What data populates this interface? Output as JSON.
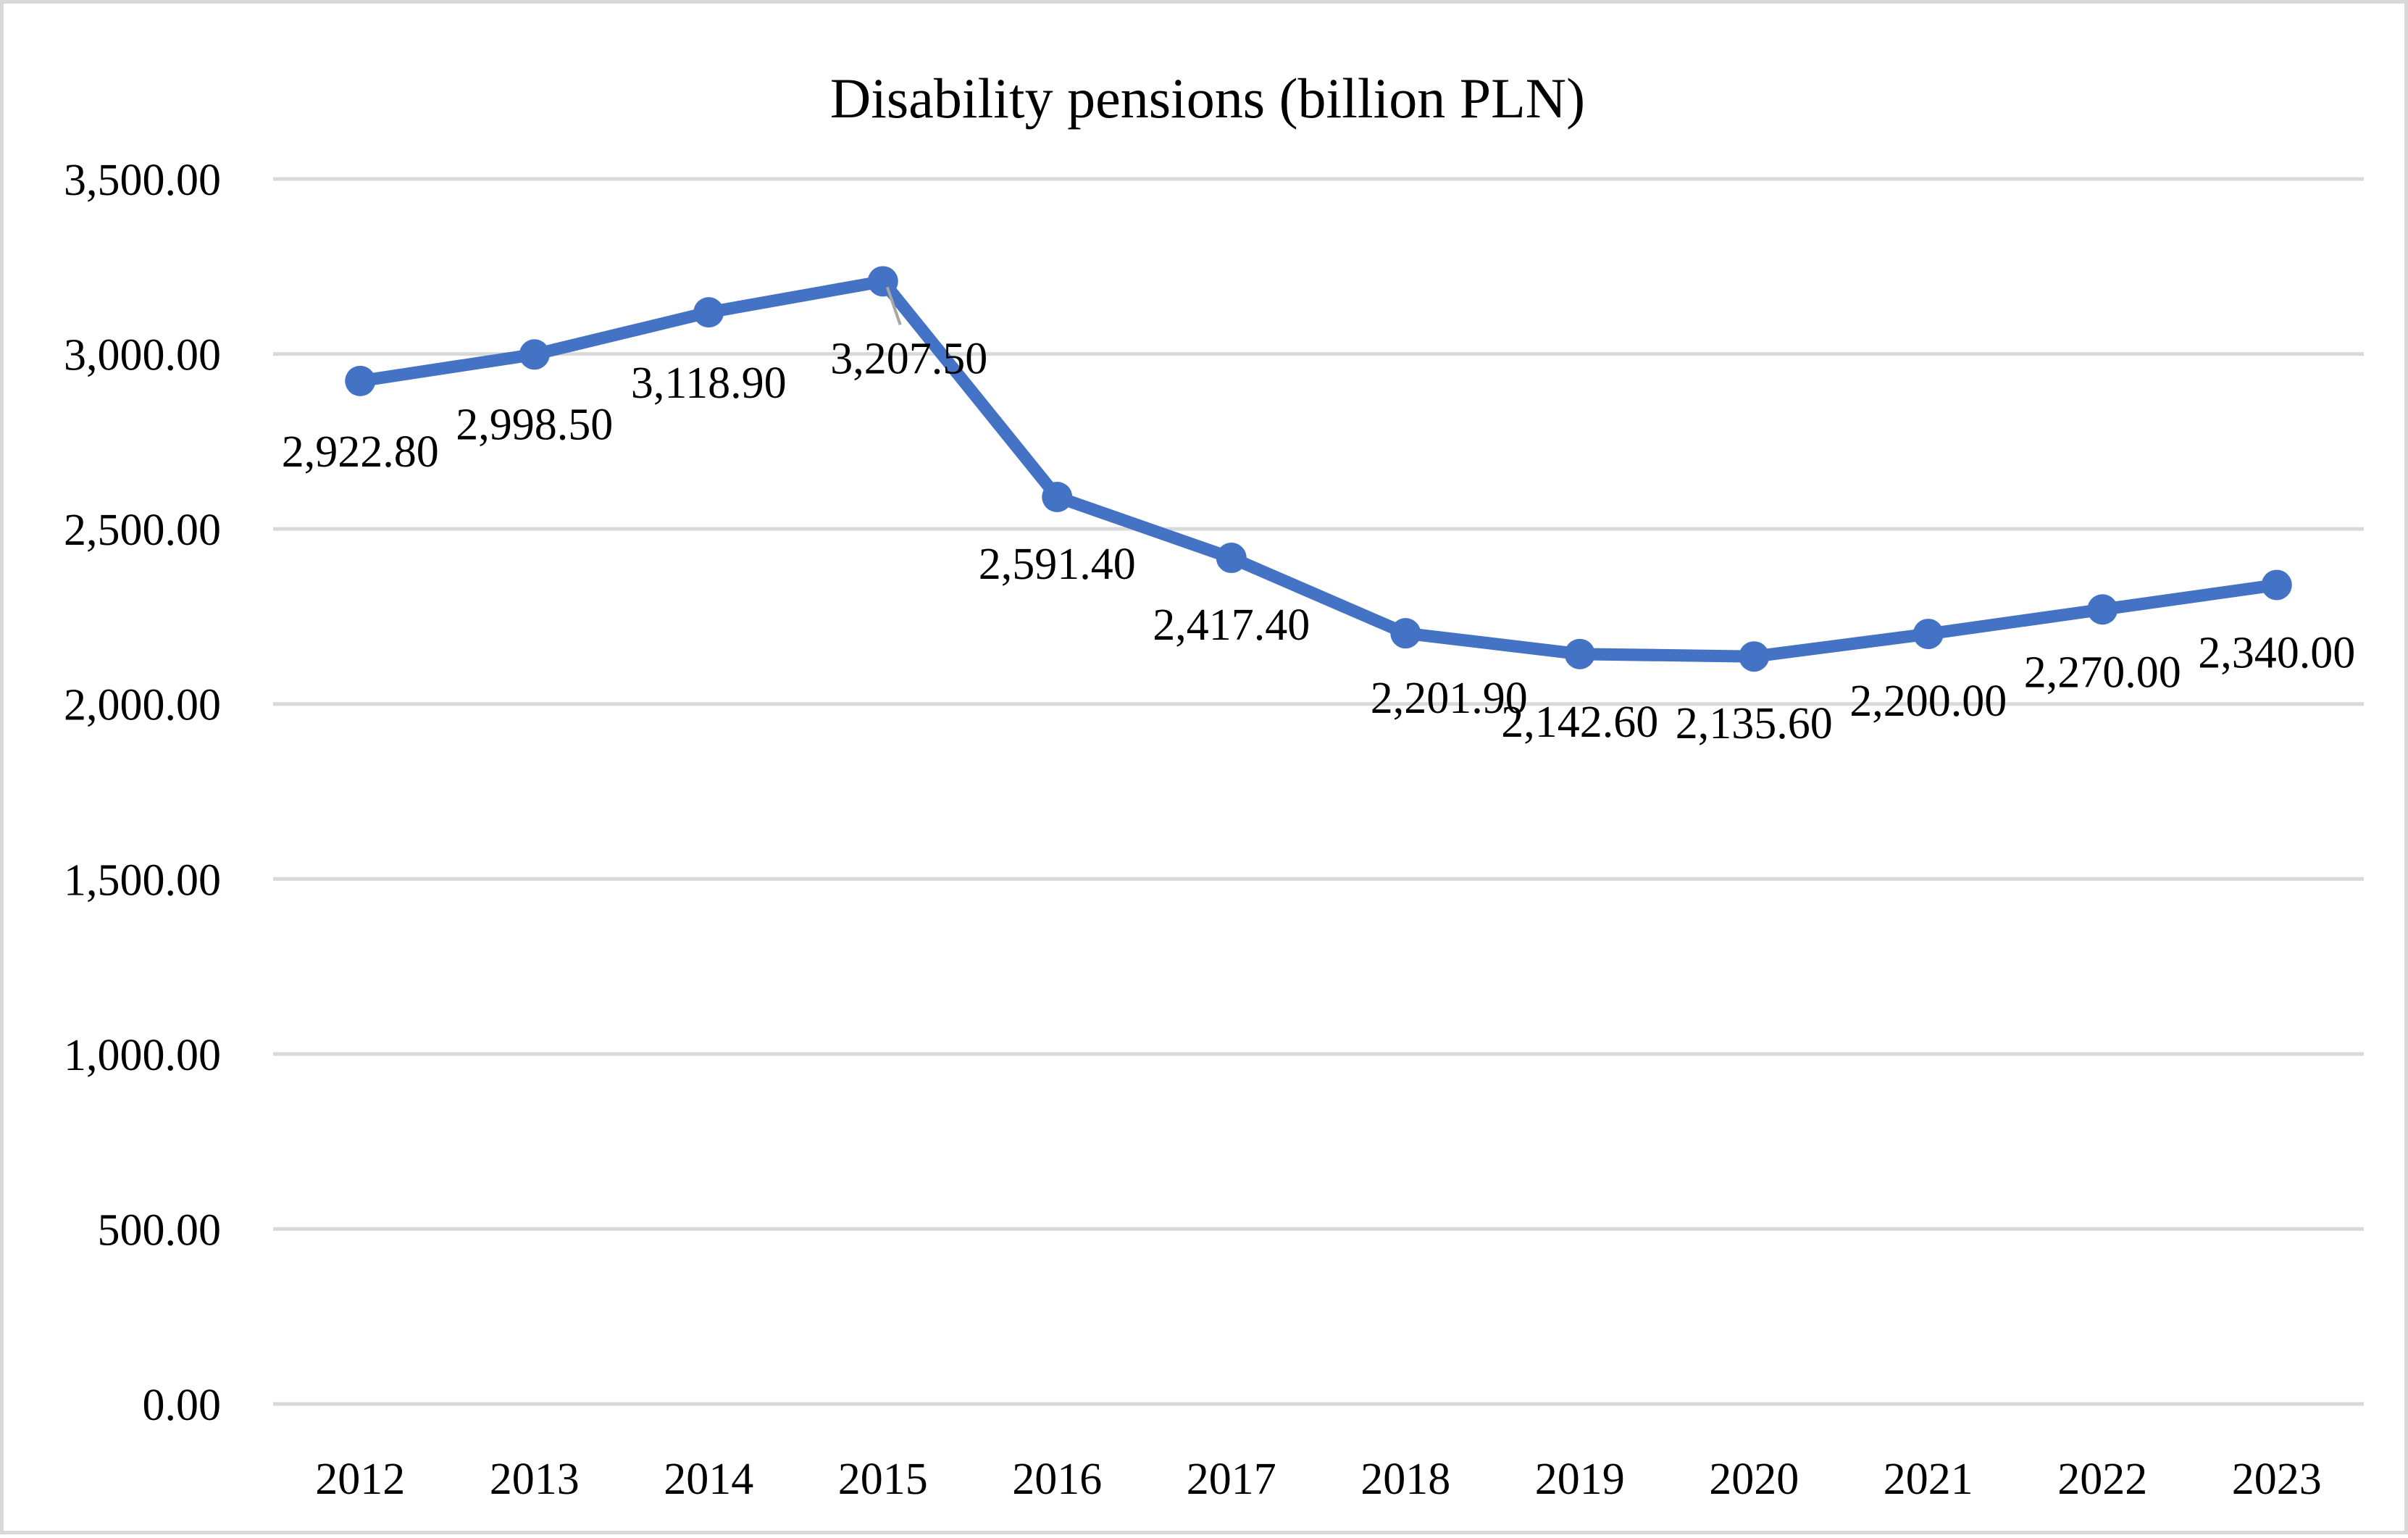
{
  "chart_data": {
    "type": "line",
    "title": "Disability pensions (billion PLN)",
    "xlabel": "",
    "ylabel": "",
    "categories": [
      "2012",
      "2013",
      "2014",
      "2015",
      "2016",
      "2017",
      "2018",
      "2019",
      "2020",
      "2021",
      "2022",
      "2023"
    ],
    "series": [
      {
        "values": [
          2922.8,
          2998.5,
          3118.9,
          3207.5,
          2591.4,
          2417.4,
          2201.9,
          2142.6,
          2135.6,
          2200.0,
          2270.0,
          2340.0
        ],
        "data_labels": [
          "2,922.80",
          "2,998.50",
          "3,118.90",
          "3,207.50",
          "2,591.40",
          "2,417.40",
          "2,201.90",
          "2,142.60",
          "2,135.60",
          "2,200.00",
          "2,270.00",
          "2,340.00"
        ],
        "color": "#4472c4"
      }
    ],
    "y_ticks": [
      0,
      500,
      1000,
      1500,
      2000,
      2500,
      3000,
      3500
    ],
    "y_tick_labels": [
      "0.00",
      "500.00",
      "1,000.00",
      "1,500.00",
      "2,000.00",
      "2,500.00",
      "3,000.00",
      "3,500.00"
    ],
    "ylim": [
      0,
      3500
    ],
    "grid": true,
    "legend": "none",
    "gridline_color": "#d9d9d9"
  }
}
